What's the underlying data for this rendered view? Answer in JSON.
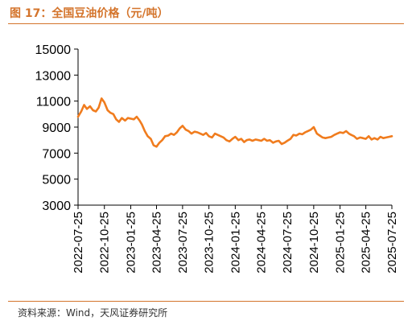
{
  "header": {
    "title": "图 17：全国豆油价格（元/吨）"
  },
  "footer": {
    "source": "资料来源：Wind，天风证券研究所"
  },
  "colors": {
    "line": "#f07c1e",
    "title": "#d4742b",
    "axis": "#000000"
  },
  "chart_data": {
    "type": "line",
    "title": "",
    "xlabel": "",
    "ylabel": "",
    "ylim": [
      3000,
      15000
    ],
    "yticks": [
      3000,
      5000,
      7000,
      9000,
      11000,
      13000,
      15000
    ],
    "ytick_labels": [
      "3000",
      "5000",
      "7000",
      "9000",
      "11000",
      "13000",
      "15000"
    ],
    "xlim": [
      "2022-07-25",
      "2025-07-25"
    ],
    "xtick_labels": [
      "2022-07-25",
      "2022-10-25",
      "2023-01-25",
      "2023-04-25",
      "2023-07-25",
      "2023-10-25",
      "2024-01-25",
      "2024-04-25",
      "2024-07-25",
      "2024-10-25",
      "2025-01-25",
      "2025-04-25",
      "2025-07-25"
    ],
    "grid": false,
    "legend": false,
    "series": [
      {
        "name": "",
        "x": [
          "2022-07-25",
          "2022-08-05",
          "2022-08-15",
          "2022-08-25",
          "2022-09-05",
          "2022-09-15",
          "2022-09-25",
          "2022-10-05",
          "2022-10-15",
          "2022-10-25",
          "2022-11-05",
          "2022-11-15",
          "2022-11-25",
          "2022-12-05",
          "2022-12-15",
          "2022-12-25",
          "2023-01-05",
          "2023-01-15",
          "2023-01-25",
          "2023-02-05",
          "2023-02-15",
          "2023-02-25",
          "2023-03-05",
          "2023-03-15",
          "2023-03-25",
          "2023-04-05",
          "2023-04-15",
          "2023-04-25",
          "2023-05-05",
          "2023-05-15",
          "2023-05-25",
          "2023-06-05",
          "2023-06-15",
          "2023-06-25",
          "2023-07-05",
          "2023-07-15",
          "2023-07-25",
          "2023-08-05",
          "2023-08-15",
          "2023-08-25",
          "2023-09-05",
          "2023-09-15",
          "2023-09-25",
          "2023-10-05",
          "2023-10-15",
          "2023-10-25",
          "2023-11-05",
          "2023-11-15",
          "2023-11-25",
          "2023-12-05",
          "2023-12-15",
          "2023-12-25",
          "2024-01-05",
          "2024-01-15",
          "2024-01-25",
          "2024-02-05",
          "2024-02-15",
          "2024-02-25",
          "2024-03-05",
          "2024-03-15",
          "2024-03-25",
          "2024-04-05",
          "2024-04-15",
          "2024-04-25",
          "2024-05-05",
          "2024-05-15",
          "2024-05-25",
          "2024-06-05",
          "2024-06-15",
          "2024-06-25",
          "2024-07-05",
          "2024-07-15",
          "2024-07-25",
          "2024-08-05",
          "2024-08-15",
          "2024-08-25",
          "2024-09-05",
          "2024-09-15",
          "2024-09-25",
          "2024-10-05",
          "2024-10-15",
          "2024-10-25",
          "2024-11-05",
          "2024-11-15",
          "2024-11-25",
          "2024-12-05",
          "2024-12-15",
          "2024-12-25",
          "2025-01-05",
          "2025-01-15",
          "2025-01-25",
          "2025-02-05",
          "2025-02-15",
          "2025-02-25",
          "2025-03-05",
          "2025-03-15",
          "2025-03-25",
          "2025-04-05",
          "2025-04-15",
          "2025-04-25",
          "2025-05-05",
          "2025-05-15",
          "2025-05-25",
          "2025-06-05",
          "2025-06-15",
          "2025-06-25",
          "2025-07-05",
          "2025-07-15",
          "2025-07-25"
        ],
        "y": [
          9800,
          10200,
          10700,
          10400,
          10600,
          10300,
          10200,
          10500,
          11200,
          10900,
          10300,
          10100,
          10000,
          9600,
          9400,
          9700,
          9500,
          9700,
          9650,
          9600,
          9800,
          9500,
          9200,
          8700,
          8300,
          8100,
          7600,
          7500,
          7800,
          8000,
          8300,
          8350,
          8500,
          8400,
          8600,
          8900,
          9100,
          8800,
          8700,
          8500,
          8650,
          8600,
          8500,
          8400,
          8550,
          8300,
          8200,
          8500,
          8400,
          8300,
          8200,
          8000,
          7900,
          8100,
          8250,
          8000,
          8100,
          7850,
          8000,
          8050,
          7950,
          8050,
          8000,
          7950,
          8100,
          7950,
          8000,
          7800,
          7900,
          7950,
          7700,
          7800,
          7950,
          8100,
          8400,
          8350,
          8500,
          8450,
          8600,
          8700,
          8800,
          9000,
          8500,
          8350,
          8200,
          8150,
          8200,
          8250,
          8400,
          8500,
          8600,
          8550,
          8700,
          8500,
          8400,
          8300,
          8100,
          8200,
          8150,
          8100,
          8300,
          8050,
          8150,
          8050,
          8250,
          8150,
          8200,
          8250,
          8300
        ]
      }
    ]
  }
}
